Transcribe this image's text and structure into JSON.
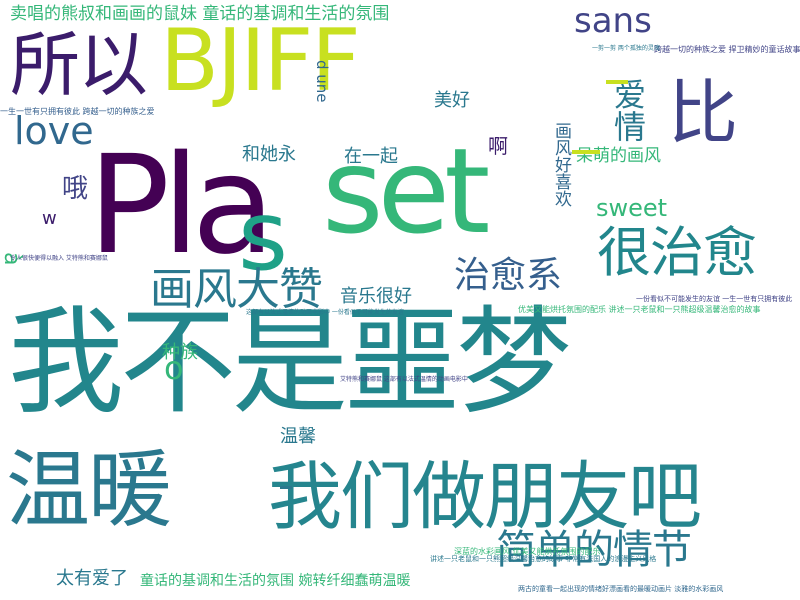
{
  "wordcloud": {
    "words": {
      "wo_bu_shi_e_meng": "我不是噩梦",
      "bjiff": "BJIFF",
      "pla": "Pla",
      "set": "set",
      "s": "s",
      "wen_nuan": "温暖",
      "women_zuo_pengyou_ba": "我们做朋友吧",
      "suo_yi": "所以",
      "bi": "比",
      "hen_zhi_yu": "很治愈",
      "hua_feng_da_zan": "画风大赞",
      "jian_dan_de_qing_jie": "简单的情节",
      "zhi_yu_xi": "治愈系",
      "love": "love",
      "sans": "sans",
      "ai_qing": "爱情",
      "mai_chang_xiong": "卖唱的熊叔和画画的鼠妹 童话的基调和生活的氛围",
      "dai_meng_de_hua_feng": "呆萌的画风",
      "hua_feng_hao_xi_huan": "画风好喜欢",
      "yin_yue_hen_hao": "音乐很好",
      "mei_hao": "美好",
      "he_ta_yong": "和她永",
      "zai_yi_qi": "在一起",
      "a1": "啊",
      "o": "哦",
      "zhong_zu": "种族",
      "wen_xin": "温馨",
      "tai_you_ai_le": "太有爱了",
      "sweet": "sweet",
      "d_une": "d une",
      "w": "w",
      "a_grave": "à",
      "o_small": "o",
      "tonghua_bottom": "童话的基调和生活的氛围 婉转纤细蠢萌温暖",
      "yi_sheng_yi_shi_left": "一生一世有只拥有彼此 跨越一切的种族之爱",
      "yi_sheng_yi_shi_right": "一份看似不可能发生的友谊 一生一世有只拥有彼此",
      "kua_yue_yi_qie": "跨越一切的种族之爱 捍卫精妙的童话故事",
      "you_mei_you": "优美又能烘托氛围的配乐 讲述一只老鼠和一只熊超级温馨治愈的故事",
      "yi_jian_yi_ge": "一剪一剪 两个孤独的灵魂",
      "ling_ren_hen": "令人很快便得以融入 艾特熊和赛娜鼠",
      "zhe_bu_you_yi": "这部有以法式温情的动画电影中 一份看似不可能发生的友谊",
      "ai_te_xiong": "艾特熊和赛娜鼠 这部有以法式温情的动画电影中",
      "zhe_bu_you_yi_2": "这部有以法式温情的动画电影中 一份看似不可能发生的友谊",
      "shen_lan": "深蓝的水彩画风 优美又能烘托氛围的配乐",
      "kua_yue_small": "讲述一只老鼠和一只熊超级温馨治愈的故事 非常有法国人的浪漫主义风格",
      "bottom_tiny": "两古的童看一起出现的情绪好漂画看的最暖动画片 淡雅的水彩画风",
      "ruo_ren": "一份看似不可能发生的友谊 一生一世有只拥有彼此"
    },
    "colors": {
      "teal": "#2a788e",
      "dark_teal": "#22868c",
      "purple": "#440154",
      "dark_purple": "#3b1c6b",
      "navy": "#414487",
      "blue": "#355f8d",
      "mid_blue": "#31688e",
      "green": "#35b779",
      "light_green": "#6ece58",
      "yellow_green": "#b5de2b",
      "yellow": "#c8e020",
      "mint": "#1fa187",
      "sea": "#25858e"
    }
  }
}
